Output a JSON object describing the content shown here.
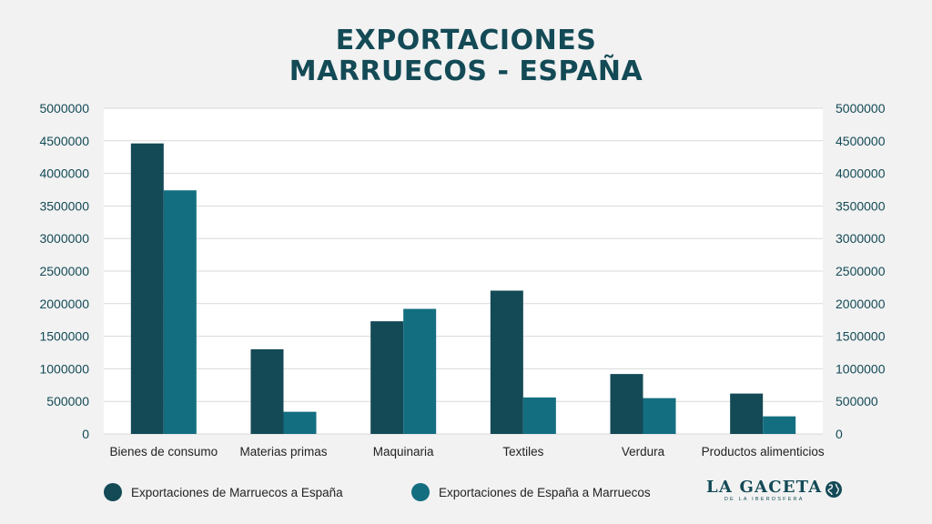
{
  "title": {
    "line1": "EXPORTACIONES",
    "line2": "MARRUECOS - ESPAÑA"
  },
  "chart_data": {
    "type": "bar",
    "categories": [
      "Bienes de consumo",
      "Materias primas",
      "Maquinaria",
      "Textiles",
      "Verdura",
      "Productos alimenticios"
    ],
    "series": [
      {
        "name": "Exportaciones de Marruecos a España",
        "values": [
          4460000,
          1300000,
          1730000,
          2200000,
          920000,
          620000
        ],
        "color": "#134a56"
      },
      {
        "name": "Exportaciones de España a Marruecos",
        "values": [
          3740000,
          340000,
          1920000,
          560000,
          550000,
          270000
        ],
        "color": "#136e80"
      }
    ],
    "ylim": [
      0,
      5000000
    ],
    "yticks": [
      "0",
      "500000",
      "1000000",
      "1500000",
      "2000000",
      "2500000",
      "3000000",
      "3500000",
      "4000000",
      "4500000",
      "5000000"
    ],
    "secondary_axis": true,
    "grid": true,
    "legend_position": "bottom"
  },
  "logo": {
    "name": "LA GACETA",
    "subtitle": "DE LA IBEROSFERA"
  },
  "colors": {
    "background": "#f2f2f2",
    "title": "#134a56",
    "axis_text": "#134a56",
    "grid": "#d9d9d9"
  }
}
